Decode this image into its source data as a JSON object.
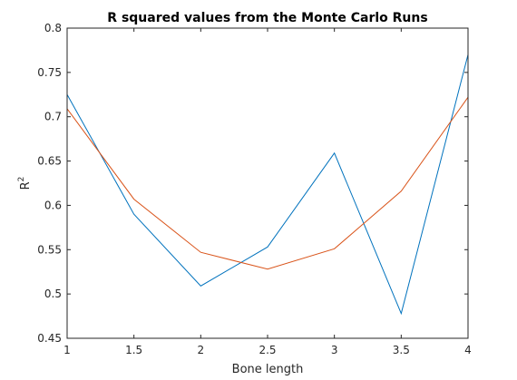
{
  "chart_data": {
    "type": "line",
    "title": "R squared values from the Monte Carlo Runs",
    "xlabel": "Bone length",
    "ylabel": "R",
    "ylabel_superscript": "2",
    "xlim": [
      1,
      4
    ],
    "ylim": [
      0.45,
      0.8
    ],
    "xticks": [
      1,
      1.5,
      2,
      2.5,
      3,
      3.5,
      4
    ],
    "xtick_labels": [
      "1",
      "1.5",
      "2",
      "2.5",
      "3",
      "3.5",
      "4"
    ],
    "yticks": [
      0.45,
      0.5,
      0.55,
      0.6,
      0.65,
      0.7,
      0.75,
      0.8
    ],
    "ytick_labels": [
      "0.45",
      "0.5",
      "0.55",
      "0.6",
      "0.65",
      "0.7",
      "0.75",
      "0.8"
    ],
    "grid": false,
    "x": [
      1,
      1.5,
      2,
      2.5,
      3,
      3.5,
      4
    ],
    "series": [
      {
        "color": "#0072BD",
        "values": [
          0.725,
          0.59,
          0.509,
          0.553,
          0.659,
          0.478,
          0.77
        ]
      },
      {
        "color": "#D95319",
        "values": [
          0.709,
          0.607,
          0.547,
          0.528,
          0.551,
          0.616,
          0.722
        ]
      }
    ]
  }
}
